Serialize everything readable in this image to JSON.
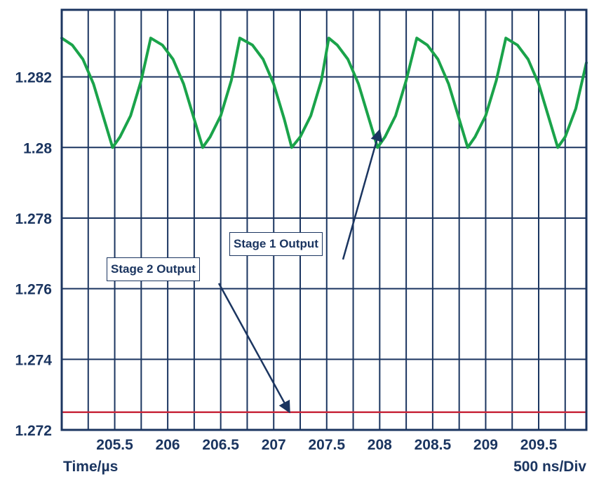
{
  "chart_data": {
    "type": "line",
    "xlabel": "Time/µs",
    "scale_label": "500 ns/Div",
    "xlim": [
      205.0,
      209.95
    ],
    "ylim": [
      1.272,
      1.2839
    ],
    "x_ticks": [
      205.5,
      206,
      206.5,
      207,
      207.5,
      208,
      208.5,
      209,
      209.5
    ],
    "x_tick_labels": [
      "205.5",
      "206",
      "206.5",
      "207",
      "207.5",
      "208",
      "208.5",
      "209",
      "209.5"
    ],
    "y_ticks": [
      1.272,
      1.274,
      1.276,
      1.278,
      1.28,
      1.282
    ],
    "y_tick_labels": [
      "1.272",
      "1.274",
      "1.276",
      "1.278",
      "1.28",
      "1.282"
    ],
    "grid": true,
    "series": [
      {
        "name": "Stage 1 Output",
        "color": "#1aa34a",
        "x": [
          205.0,
          205.1,
          205.2,
          205.3,
          205.4,
          205.48,
          205.55,
          205.65,
          205.75,
          205.84,
          205.95,
          206.05,
          206.15,
          206.25,
          206.33,
          206.4,
          206.5,
          206.6,
          206.68,
          206.8,
          206.9,
          207.0,
          207.1,
          207.17,
          207.25,
          207.35,
          207.45,
          207.52,
          207.6,
          207.7,
          207.8,
          207.9,
          207.98,
          208.05,
          208.15,
          208.25,
          208.35,
          208.45,
          208.55,
          208.65,
          208.75,
          208.83,
          208.9,
          209.0,
          209.1,
          209.19,
          209.3,
          209.4,
          209.5,
          209.6,
          209.68,
          209.75,
          209.85,
          209.95
        ],
        "y": [
          1.2831,
          1.2829,
          1.2825,
          1.2818,
          1.2808,
          1.28,
          1.2803,
          1.2809,
          1.2819,
          1.2831,
          1.2829,
          1.2825,
          1.2818,
          1.2808,
          1.28,
          1.2803,
          1.2809,
          1.2819,
          1.2831,
          1.2829,
          1.2825,
          1.2818,
          1.2808,
          1.28,
          1.2803,
          1.2809,
          1.2819,
          1.2831,
          1.2829,
          1.2825,
          1.2818,
          1.2808,
          1.28,
          1.2803,
          1.2809,
          1.2819,
          1.2831,
          1.2829,
          1.2825,
          1.2818,
          1.2808,
          1.28,
          1.2803,
          1.2809,
          1.2819,
          1.2831,
          1.2829,
          1.2825,
          1.2818,
          1.2808,
          1.28,
          1.2803,
          1.2811,
          1.2824
        ]
      },
      {
        "name": "Stage 2 Output",
        "color": "#c8283c",
        "x": [
          205.0,
          209.95
        ],
        "y": [
          1.2725,
          1.2725
        ]
      }
    ],
    "annotations": [
      {
        "text": "Stage 1 Output",
        "arrow_to": [
          208.0,
          1.2805
        ]
      },
      {
        "text": "Stage 2 Output",
        "arrow_to": [
          207.15,
          1.2725
        ]
      }
    ]
  }
}
